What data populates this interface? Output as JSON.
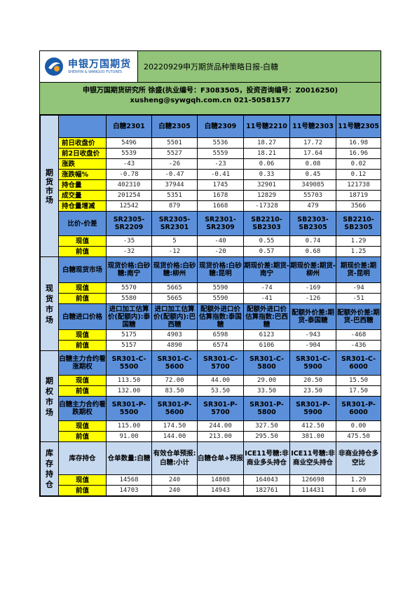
{
  "header": {
    "logo_cn": "申银万国期货",
    "logo_en": "SHENYIN & WANGUO FUTURES",
    "title": "20220929申万期货品种策略日报-白糖"
  },
  "info": {
    "line1": "申银万国期货研究所    徐盛(执业编号：F3083505，投资咨询编号：Z0016250)",
    "line2": "xusheng@sywgqh.com.cn 021-50581577"
  },
  "futures": {
    "section": [
      "期",
      "货",
      "市",
      "场"
    ],
    "columns": [
      "白糖2301",
      "白糖2305",
      "白糖2309",
      "11号糖2210",
      "11号糖2303",
      "11号糖2305"
    ],
    "rows": [
      {
        "label": "前日收盘价",
        "values": [
          "5496",
          "5501",
          "5536",
          "18.27",
          "17.72",
          "16.98"
        ]
      },
      {
        "label": "前2日收盘价",
        "values": [
          "5539",
          "5527",
          "5559",
          "18.21",
          "17.64",
          "16.96"
        ]
      },
      {
        "label": "涨跌",
        "values": [
          "-43",
          "-26",
          "-23",
          "0.06",
          "0.08",
          "0.02"
        ]
      },
      {
        "label": "涨跌幅%",
        "values": [
          "-0.78",
          "-0.47",
          "-0.41",
          "0.33",
          "0.45",
          "0.12"
        ]
      },
      {
        "label": "持仓量",
        "values": [
          "402310",
          "37944",
          "1745",
          "32901",
          "349085",
          "121738"
        ]
      },
      {
        "label": "成交量",
        "values": [
          "201254",
          "5351",
          "1678",
          "12829",
          "55703",
          "18719"
        ]
      },
      {
        "label": "持仓量增减",
        "values": [
          "12542",
          "879",
          "1668",
          "-17328",
          "479",
          "3566"
        ]
      }
    ],
    "spread_label": "比价-价差",
    "spread_columns": [
      "SR2305-SR2209",
      "SR2305-SR2301",
      "SR2301-SR2309",
      "SB2210-SB2303",
      "SB2303-SB2305",
      "SB2210-SB2305"
    ],
    "spread_rows": [
      {
        "label": "现值",
        "values": [
          "-35",
          "5",
          "-40",
          "0.55",
          "0.74",
          "1.29"
        ]
      },
      {
        "label": "前值",
        "values": [
          "-32",
          "-12",
          "-20",
          "0.57",
          "0.68",
          "1.25"
        ]
      }
    ]
  },
  "spot": {
    "section": [
      "现",
      "货",
      "市",
      "场"
    ],
    "group1_label": "白糖现货市场",
    "group1_columns": [
      "现货价格:白砂糖:南宁",
      "现货价格:白砂糖:柳州",
      "现货价格:白砂糖:昆明",
      "期现价差:期货-南宁",
      "期现价差:期货-柳州",
      "期现价差:期货-昆明"
    ],
    "group1_rows": [
      {
        "label": "现值",
        "values": [
          "5570",
          "5665",
          "5590",
          "-74",
          "-169",
          "-94"
        ]
      },
      {
        "label": "前值",
        "values": [
          "5580",
          "5665",
          "5590",
          "-41",
          "-126",
          "-51"
        ]
      }
    ],
    "group2_label": "白糖进口价格",
    "group2_columns": [
      "进口加工估算价(配额内):泰国糖",
      "进口加工估算价(配额内):巴西糖",
      "配额外进口价估算指数:泰国糖",
      "配额外进口价估算指数:巴西糖",
      "配额外价差:期货-泰国糖",
      "配额外价差:期货-巴西糖"
    ],
    "group2_rows": [
      {
        "label": "现值",
        "values": [
          "5175",
          "4903",
          "6598",
          "6123",
          "-943",
          "-468"
        ]
      },
      {
        "label": "前值",
        "values": [
          "5157",
          "4890",
          "6574",
          "6106",
          "-904",
          "-436"
        ]
      }
    ]
  },
  "options": {
    "section": [
      "期",
      "权",
      "市",
      "场"
    ],
    "call_label": "白糖主力合约看涨期权",
    "call_columns": [
      "SR301-C-5500",
      "SR301-C-5600",
      "SR301-C-5700",
      "SR301-C-5800",
      "SR301-C-5900",
      "SR301-C-6000"
    ],
    "call_rows": [
      {
        "label": "现值",
        "values": [
          "113.50",
          "72.00",
          "44.00",
          "29.00",
          "20.50",
          "15.50"
        ]
      },
      {
        "label": "前值",
        "values": [
          "132.00",
          "83.50",
          "53.50",
          "33.50",
          "23.50",
          "17.50"
        ]
      }
    ],
    "put_label": "白糖主力合约看跌期权",
    "put_columns": [
      "SR301-P-5500",
      "SR301-P-5600",
      "SR301-P-5700",
      "SR301-P-5800",
      "SR301-P-5900",
      "SR301-P-6000"
    ],
    "put_rows": [
      {
        "label": "现值",
        "values": [
          "115.00",
          "174.50",
          "244.00",
          "327.50",
          "412.50",
          "0.00"
        ]
      },
      {
        "label": "前值",
        "values": [
          "91.00",
          "144.00",
          "213.00",
          "295.50",
          "381.00",
          "475.50"
        ]
      }
    ]
  },
  "inventory": {
    "section": [
      "库",
      "存",
      "持",
      "仓"
    ],
    "label": "库存持仓",
    "columns": [
      "仓单数量:白糖",
      "有效仓单预报:白糖:小计",
      "白糖仓单+预报",
      "ICE11号糖:非商业多头持仓",
      "ICE11号糖:非商业空头持仓",
      "非商业持仓多空比"
    ],
    "rows": [
      {
        "label": "现值",
        "values": [
          "14568",
          "240",
          "14808",
          "164043",
          "126698",
          "1.29"
        ]
      },
      {
        "label": "前值",
        "values": [
          "14703",
          "240",
          "14943",
          "182761",
          "114431",
          "1.60"
        ]
      }
    ]
  },
  "colors": {
    "header_green": "#92c47a",
    "section_blue": "#c7d9ef",
    "column_blue": "#5b8fd9",
    "label_yellow": "#ffff00",
    "logo_blue": "#1b5aa8"
  },
  "icons": {
    "logo": "shenyin-wanguo-logo-icon"
  }
}
